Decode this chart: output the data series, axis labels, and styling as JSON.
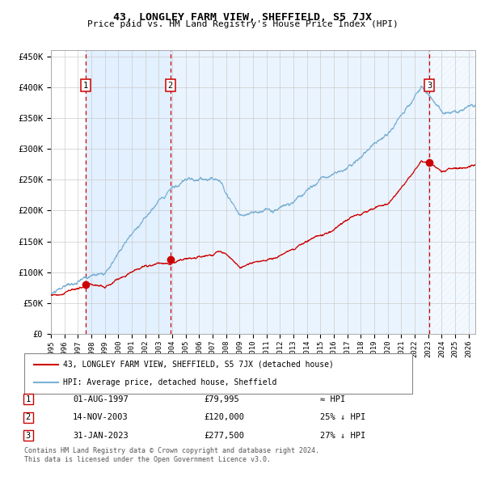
{
  "title": "43, LONGLEY FARM VIEW, SHEFFIELD, S5 7JX",
  "subtitle": "Price paid vs. HM Land Registry's House Price Index (HPI)",
  "xlim_start": 1995.0,
  "xlim_end": 2026.5,
  "ylim_min": 0,
  "ylim_max": 460000,
  "yticks": [
    0,
    50000,
    100000,
    150000,
    200000,
    250000,
    300000,
    350000,
    400000,
    450000
  ],
  "ytick_labels": [
    "£0",
    "£50K",
    "£100K",
    "£150K",
    "£200K",
    "£250K",
    "£300K",
    "£350K",
    "£400K",
    "£450K"
  ],
  "transactions": [
    {
      "num": 1,
      "date": "01-AUG-1997",
      "price": 79995,
      "rel": "≈ HPI",
      "x": 1997.58
    },
    {
      "num": 2,
      "date": "14-NOV-2003",
      "price": 120000,
      "rel": "25% ↓ HPI",
      "x": 2003.87
    },
    {
      "num": 3,
      "date": "31-JAN-2023",
      "price": 277500,
      "rel": "27% ↓ HPI",
      "x": 2023.08
    }
  ],
  "legend_line1": "43, LONGLEY FARM VIEW, SHEFFIELD, S5 7JX (detached house)",
  "legend_line2": "HPI: Average price, detached house, Sheffield",
  "footer_line1": "Contains HM Land Registry data © Crown copyright and database right 2024.",
  "footer_line2": "This data is licensed under the Open Government Licence v3.0.",
  "line_color_red": "#cc0000",
  "line_color_blue": "#7ab0d4",
  "bg_shaded": "#ddeeff",
  "grid_color": "#cccccc",
  "vline_color": "#cc0000",
  "marker_color": "#cc0000",
  "box_edge_color": "#cc0000",
  "xtick_years": [
    1995,
    1996,
    1997,
    1998,
    1999,
    2000,
    2001,
    2002,
    2003,
    2004,
    2005,
    2006,
    2007,
    2008,
    2009,
    2010,
    2011,
    2012,
    2013,
    2014,
    2015,
    2016,
    2017,
    2018,
    2019,
    2020,
    2021,
    2022,
    2023,
    2024,
    2025,
    2026
  ]
}
